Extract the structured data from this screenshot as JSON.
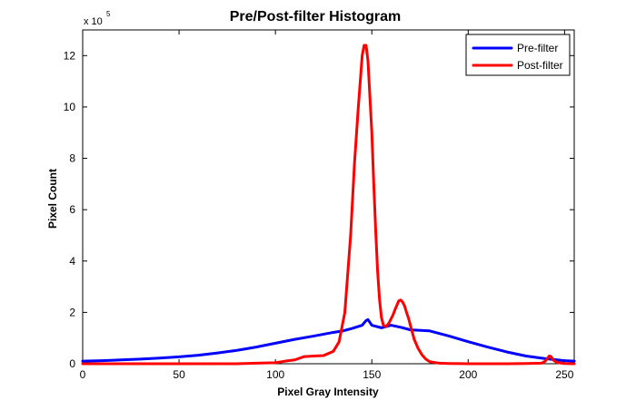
{
  "chart_data": {
    "type": "line",
    "title": "Pre/Post-filter Histogram",
    "xlabel": "Pixel Gray Intensity",
    "ylabel": "Pixel Count",
    "xlim": [
      0,
      255
    ],
    "ylim": [
      0,
      1300000
    ],
    "x_ticks": [
      0,
      50,
      100,
      150,
      200,
      250
    ],
    "y_ticks": [
      0,
      200000,
      400000,
      600000,
      800000,
      1000000,
      1200000
    ],
    "x_tick_labels": [
      "0",
      "50",
      "100",
      "150",
      "200",
      "250"
    ],
    "y_tick_labels": [
      "0",
      "2",
      "4",
      "6",
      "8",
      "10",
      "12"
    ],
    "y_multiplier": {
      "base": "x 10",
      "exponent": "5"
    },
    "grid": false,
    "legend_position": "top-right",
    "series": [
      {
        "name": "Pre-filter",
        "color": "#0000ff",
        "x": [
          0,
          10,
          20,
          30,
          40,
          50,
          60,
          70,
          80,
          90,
          100,
          110,
          120,
          130,
          135,
          140,
          145,
          147,
          148,
          150,
          155,
          160,
          165,
          170,
          180,
          190,
          200,
          210,
          220,
          230,
          240,
          250,
          255
        ],
        "y": [
          10000,
          12000,
          15000,
          18000,
          22000,
          27000,
          33000,
          42000,
          52000,
          65000,
          80000,
          95000,
          108000,
          122000,
          128000,
          138000,
          150000,
          168000,
          172000,
          150000,
          140000,
          150000,
          142000,
          132000,
          128000,
          108000,
          86000,
          65000,
          46000,
          30000,
          20000,
          12000,
          10000
        ]
      },
      {
        "name": "Post-filter",
        "color": "#ff0000",
        "x": [
          0,
          20,
          40,
          60,
          80,
          90,
          100,
          105,
          110,
          115,
          120,
          125,
          130,
          133,
          136,
          139,
          141,
          143,
          145,
          146,
          147,
          148,
          149,
          150,
          151,
          152,
          153,
          154,
          155,
          156,
          157,
          158,
          159,
          160,
          161,
          162,
          163,
          164,
          165,
          166,
          167,
          168,
          169,
          170,
          172,
          174,
          176,
          178,
          180,
          185,
          190,
          200,
          210,
          220,
          230,
          238,
          240,
          241,
          242,
          243,
          244,
          246,
          250,
          255
        ],
        "y": [
          0,
          0,
          0,
          0,
          0,
          2000,
          4000,
          10000,
          15000,
          28000,
          30000,
          32000,
          48000,
          85000,
          200000,
          500000,
          780000,
          1000000,
          1200000,
          1240000,
          1240000,
          1180000,
          1040000,
          900000,
          700000,
          520000,
          360000,
          250000,
          180000,
          150000,
          145000,
          150000,
          160000,
          175000,
          190000,
          210000,
          228000,
          245000,
          248000,
          240000,
          225000,
          200000,
          178000,
          150000,
          95000,
          60000,
          35000,
          18000,
          8000,
          2000,
          1000,
          0,
          0,
          0,
          1000,
          2000,
          10000,
          20000,
          30000,
          28000,
          15000,
          5000,
          1000,
          0
        ]
      }
    ]
  }
}
